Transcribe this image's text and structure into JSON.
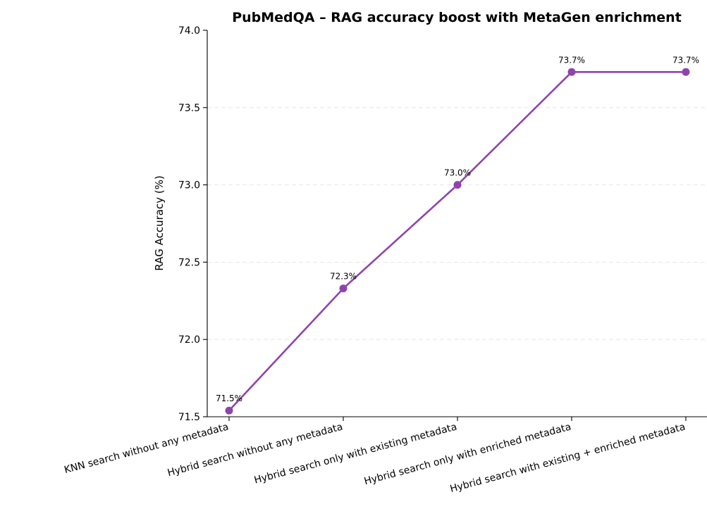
{
  "chart_data": {
    "type": "line",
    "title": "PubMedQA – RAG accuracy boost with MetaGen enrichment",
    "xlabel": "",
    "ylabel": "RAG Accuracy (%)",
    "categories": [
      "KNN search without any metadata",
      "Hybrid search without any metadata",
      "Hybrid search only with existing metadata",
      "Hybrid search only with enriched metadata",
      "Hybrid search with existing + enriched metadata"
    ],
    "values": [
      71.54,
      72.33,
      73.0,
      73.73,
      73.73
    ],
    "data_labels": [
      "71.5%",
      "72.3%",
      "73.0%",
      "73.7%",
      "73.7%"
    ],
    "ylim": [
      71.5,
      74.0
    ],
    "yticks": [
      "71.5",
      "72.0",
      "72.5",
      "73.0",
      "73.5",
      "74.0"
    ],
    "grid": "y-dashed",
    "line_color": "#8e44ad",
    "marker": "circle"
  }
}
